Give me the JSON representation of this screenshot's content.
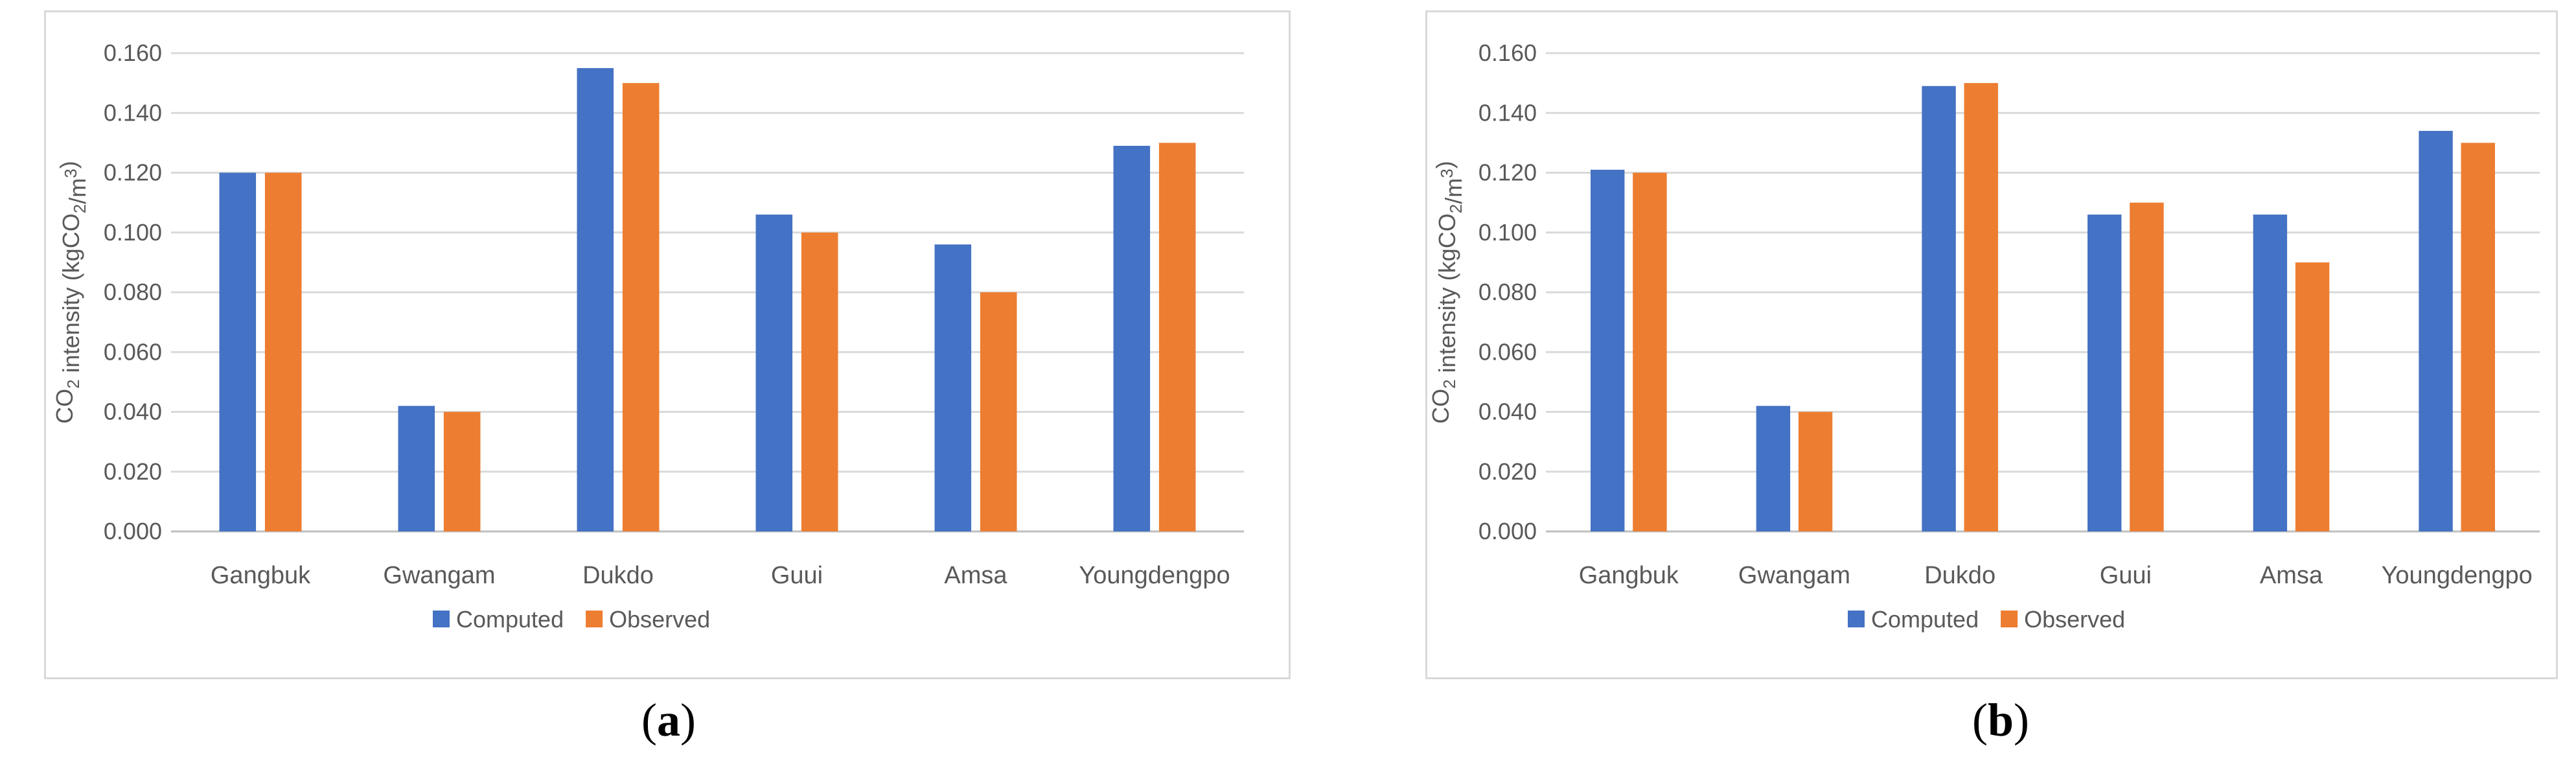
{
  "chart_data": [
    {
      "type": "bar",
      "panel_label": "a",
      "categories": [
        "Gangbuk",
        "Gwangam",
        "Dukdo",
        "Guui",
        "Amsa",
        "Youngdengpo"
      ],
      "series": [
        {
          "name": "Computed",
          "color": "#4472c4",
          "values": [
            0.12,
            0.042,
            0.155,
            0.106,
            0.096,
            0.129
          ]
        },
        {
          "name": "Observed",
          "color": "#ed7d31",
          "values": [
            0.12,
            0.04,
            0.15,
            0.1,
            0.08,
            0.13
          ]
        }
      ],
      "ylabel_parts": [
        "CO",
        "2",
        " intensity (kgCO",
        "2",
        "/m",
        "3",
        ")"
      ],
      "ylim": [
        0,
        0.16
      ],
      "yticks": [
        "0.000",
        "0.020",
        "0.040",
        "0.060",
        "0.080",
        "0.100",
        "0.120",
        "0.140",
        "0.160"
      ],
      "grid": true,
      "legend_position": "bottom"
    },
    {
      "type": "bar",
      "panel_label": "b",
      "categories": [
        "Gangbuk",
        "Gwangam",
        "Dukdo",
        "Guui",
        "Amsa",
        "Youngdengpo"
      ],
      "series": [
        {
          "name": "Computed",
          "color": "#4472c4",
          "values": [
            0.121,
            0.042,
            0.149,
            0.106,
            0.106,
            0.134
          ]
        },
        {
          "name": "Observed",
          "color": "#ed7d31",
          "values": [
            0.12,
            0.04,
            0.15,
            0.11,
            0.09,
            0.13
          ]
        }
      ],
      "ylabel_parts": [
        "CO",
        "2",
        " intensity (kgCO",
        "2",
        "/m",
        "3",
        ")"
      ],
      "ylim": [
        0,
        0.16
      ],
      "yticks": [
        "0.000",
        "0.020",
        "0.040",
        "0.060",
        "0.080",
        "0.100",
        "0.120",
        "0.140",
        "0.160"
      ],
      "grid": true,
      "legend_position": "bottom"
    }
  ],
  "captions": [
    "a",
    "b"
  ]
}
